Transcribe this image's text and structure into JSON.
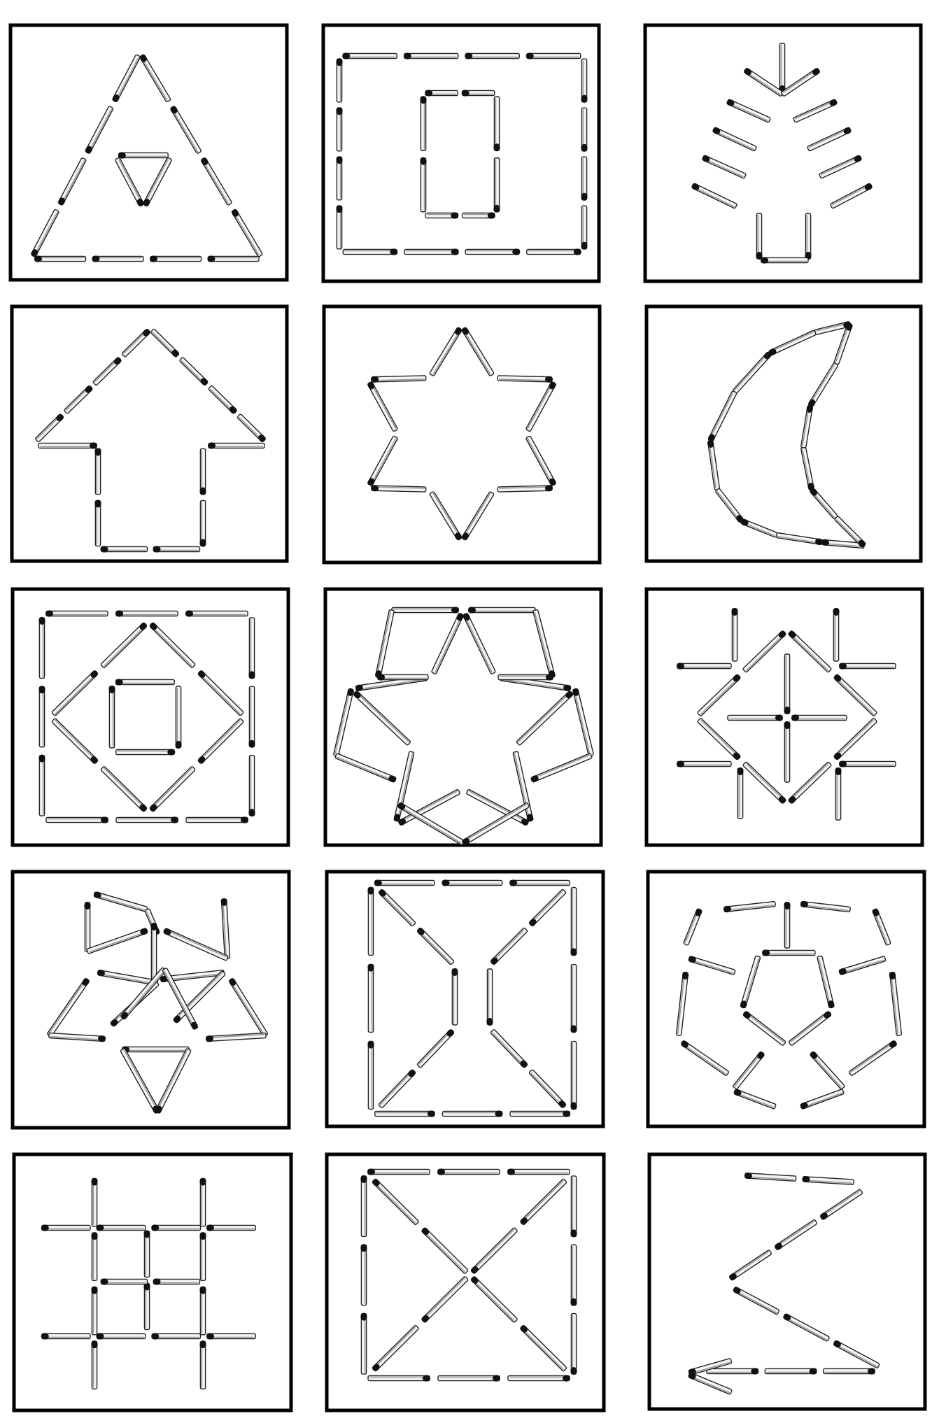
{
  "colors": {
    "background": "#ffffff",
    "frame": "#000000",
    "stick_wood": "#f4f4f4",
    "stick_outline": "#222222",
    "stick_head": "#111111"
  },
  "cards": [
    {
      "id": "card-1",
      "figure": "triangle-with-inner-triangle"
    },
    {
      "id": "card-2",
      "figure": "rectangle-with-inner-rectangle"
    },
    {
      "id": "card-3",
      "figure": "fir-tree"
    },
    {
      "id": "card-4",
      "figure": "arrow-house"
    },
    {
      "id": "card-5",
      "figure": "six-pointed-star"
    },
    {
      "id": "card-6",
      "figure": "crescent-moon"
    },
    {
      "id": "card-7",
      "figure": "square-diamond-square"
    },
    {
      "id": "card-8",
      "figure": "star-with-rhombi"
    },
    {
      "id": "card-9",
      "figure": "diamond-with-crosses"
    },
    {
      "id": "card-10",
      "figure": "triangle-flower"
    },
    {
      "id": "card-11",
      "figure": "hourglass-in-square"
    },
    {
      "id": "card-12",
      "figure": "pentagon-ball"
    },
    {
      "id": "card-13",
      "figure": "grid-hash"
    },
    {
      "id": "card-14",
      "figure": "square-with-diagonals"
    },
    {
      "id": "card-15",
      "figure": "zigzag-arrow"
    }
  ]
}
